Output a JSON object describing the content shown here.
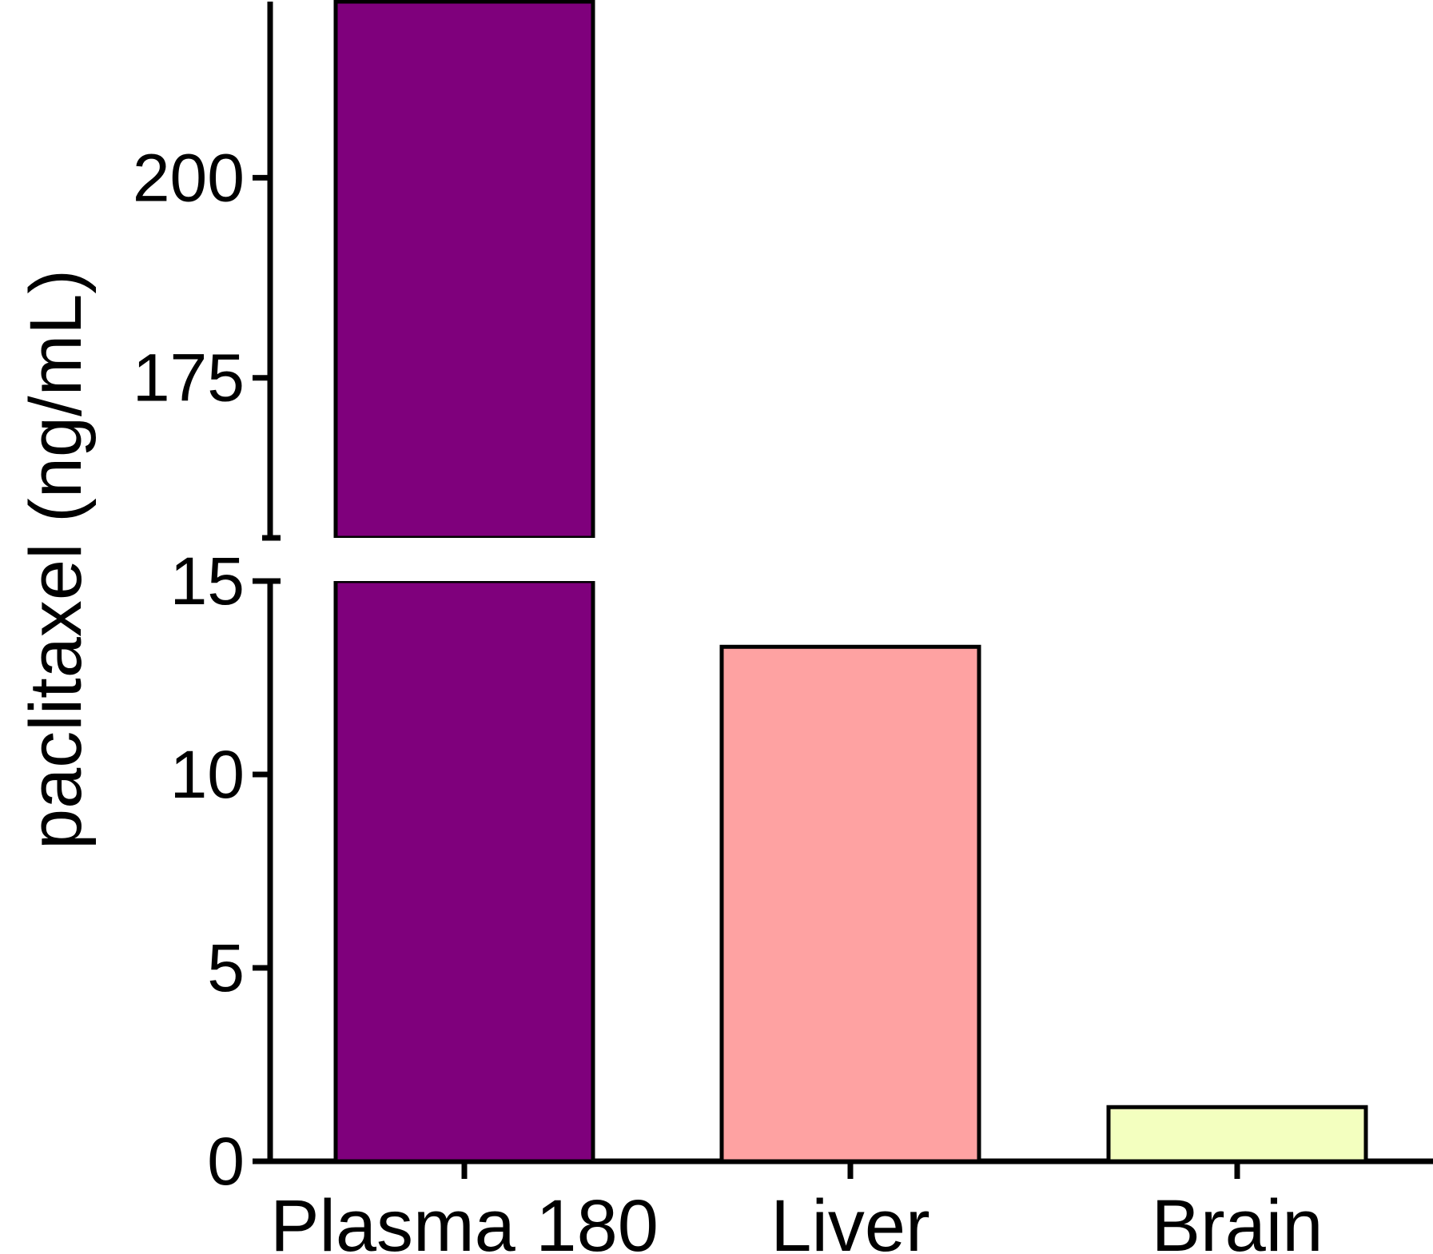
{
  "chart_data": {
    "type": "bar",
    "categories": [
      "Plasma 180",
      "Liver",
      "Brain"
    ],
    "values": [
      222,
      13.3,
      1.4
    ],
    "ylabel": "paclitaxel (ng/mL)",
    "xlabel": "",
    "y_break": {
      "lower_segment": [
        0,
        15
      ],
      "upper_segment": [
        155,
        222
      ]
    },
    "lower_ticks": [
      0,
      5,
      10,
      15
    ],
    "upper_ticks": [
      175,
      200
    ],
    "grid": false,
    "legend": "none",
    "colors": {
      "Plasma 180": "#7f007c",
      "Liver": "#fea2a2",
      "Brain": "#f3ffbf",
      "outline": "#000000"
    }
  }
}
